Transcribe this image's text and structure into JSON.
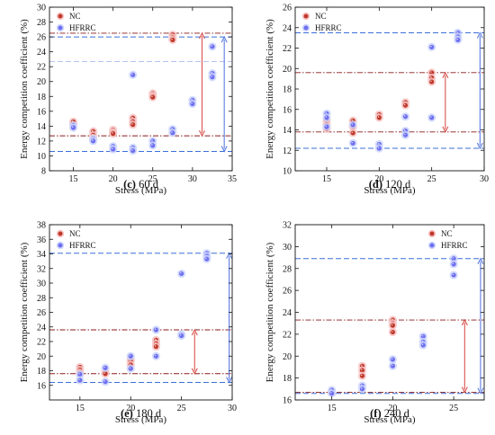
{
  "figure_caption_parts": [
    {
      "letter": "(c)",
      "rest": " 60 d"
    },
    {
      "letter": "(d)",
      "rest": " 120 d"
    },
    {
      "letter": "(e)",
      "rest": " 180 d"
    },
    {
      "letter": "(f)",
      "rest": " 240 d"
    }
  ],
  "colors": {
    "nc": "#c0392b",
    "hfrrc": "#6f6ff0",
    "nc_line": "#8b1a1a",
    "hfrrc_line": "#3b6fd8",
    "nc_arrow": "#d9534f",
    "hfrrc_arrow": "#5b7be0",
    "dot_halo_nc": "#f7c6c6",
    "dot_halo_hf": "#cdd6fb"
  },
  "chart_data": [
    {
      "type": "scatter",
      "panel": "(c) 60 d",
      "xlabel": "Stress (MPa)",
      "ylabel": "Energy competition coefficient (%)",
      "xlim": [
        12,
        35
      ],
      "ylim": [
        8,
        30
      ],
      "xticks": [
        15,
        20,
        25,
        30,
        35
      ],
      "yticks": [
        8,
        10,
        12,
        14,
        16,
        18,
        20,
        22,
        24,
        26,
        28,
        30
      ],
      "legend": [
        "NC",
        "HFRRC"
      ],
      "legend_position": "top-left",
      "series": [
        {
          "name": "NC",
          "points": [
            [
              15,
              14.3
            ],
            [
              15,
              14.6
            ],
            [
              15,
              13.9
            ],
            [
              17.5,
              13.3
            ],
            [
              17.5,
              12.8
            ],
            [
              17.5,
              12.4
            ],
            [
              20,
              13.5
            ],
            [
              20,
              13.2
            ],
            [
              20,
              13.0
            ],
            [
              22.5,
              15.1
            ],
            [
              22.5,
              14.6
            ],
            [
              22.5,
              14.2
            ],
            [
              25,
              18.4
            ],
            [
              25,
              18.1
            ],
            [
              25,
              17.9
            ],
            [
              27.5,
              26.3
            ],
            [
              27.5,
              25.9
            ],
            [
              27.5,
              25.6
            ]
          ]
        },
        {
          "name": "HFRRC",
          "points": [
            [
              15,
              14.1
            ],
            [
              15,
              13.8
            ],
            [
              17.5,
              12.3
            ],
            [
              17.5,
              12.0
            ],
            [
              20,
              11.3
            ],
            [
              20,
              10.9
            ],
            [
              22.5,
              11.1
            ],
            [
              22.5,
              10.7
            ],
            [
              22.5,
              20.9
            ],
            [
              25,
              12.0
            ],
            [
              25,
              11.4
            ],
            [
              27.5,
              13.6
            ],
            [
              27.5,
              13.1
            ],
            [
              30,
              17.5
            ],
            [
              30,
              17.0
            ],
            [
              32.5,
              24.7
            ],
            [
              32.5,
              21.1
            ],
            [
              32.5,
              20.6
            ]
          ]
        }
      ],
      "ref_lines": {
        "nc": [
          26.5,
          12.7
        ],
        "hfrrc": [
          26.0,
          10.6
        ]
      },
      "extra_lines": {
        "hfrrc": [
          22.7
        ]
      },
      "arrows": {
        "nc": {
          "x": 31.2,
          "y_top": 26.5,
          "y_bottom": 12.7
        },
        "hfrrc": {
          "x": 34.0,
          "y_top": 26.0,
          "y_bottom": 10.6
        }
      }
    },
    {
      "type": "scatter",
      "panel": "(d) 120 d",
      "xlabel": "Stress (MPa)",
      "ylabel": "Energy competition coefficient (%)",
      "xlim": [
        12,
        30
      ],
      "ylim": [
        10,
        26
      ],
      "xticks": [
        15,
        20,
        25,
        30
      ],
      "yticks": [
        10,
        12,
        14,
        16,
        18,
        20,
        22,
        24,
        26
      ],
      "legend": [
        "NC",
        "HFRRC"
      ],
      "legend_position": "top-left",
      "series": [
        {
          "name": "NC",
          "points": [
            [
              15,
              14.9
            ],
            [
              15,
              14.5
            ],
            [
              15,
              14.1
            ],
            [
              17.5,
              14.9
            ],
            [
              17.5,
              14.3
            ],
            [
              17.5,
              13.7
            ],
            [
              20,
              15.5
            ],
            [
              20,
              15.2
            ],
            [
              22.5,
              16.7
            ],
            [
              22.5,
              16.4
            ],
            [
              25,
              19.6
            ],
            [
              25,
              19.1
            ],
            [
              25,
              18.7
            ]
          ]
        },
        {
          "name": "HFRRC",
          "points": [
            [
              15,
              15.6
            ],
            [
              15,
              15.2
            ],
            [
              15,
              14.3
            ],
            [
              17.5,
              14.5
            ],
            [
              17.5,
              12.7
            ],
            [
              20,
              12.6
            ],
            [
              20,
              12.2
            ],
            [
              22.5,
              15.3
            ],
            [
              22.5,
              13.9
            ],
            [
              22.5,
              13.5
            ],
            [
              25,
              22.1
            ],
            [
              25,
              15.2
            ],
            [
              27.5,
              23.5
            ],
            [
              27.5,
              23.1
            ],
            [
              27.5,
              22.8
            ]
          ]
        }
      ],
      "ref_lines": {
        "nc": [
          19.6,
          13.8
        ],
        "hfrrc": [
          23.5,
          12.2
        ]
      },
      "arrows": {
        "nc": {
          "x": 26.3,
          "y_top": 19.6,
          "y_bottom": 13.8
        },
        "hfrrc": {
          "x": 29.6,
          "y_top": 23.5,
          "y_bottom": 12.2
        }
      }
    },
    {
      "type": "scatter",
      "panel": "(e) 180 d",
      "xlabel": "Stress (MPa)",
      "ylabel": "Energy competition coefficient (%)",
      "xlim": [
        12,
        30
      ],
      "ylim": [
        14,
        38
      ],
      "xticks": [
        15,
        20,
        25,
        30
      ],
      "yticks": [
        16,
        18,
        20,
        22,
        24,
        26,
        28,
        30,
        32,
        34,
        36,
        38
      ],
      "legend": [
        "NC",
        "HFRRC"
      ],
      "legend_position": "top-left",
      "series": [
        {
          "name": "NC",
          "points": [
            [
              15,
              18.5
            ],
            [
              15,
              18.1
            ],
            [
              15,
              17.7
            ],
            [
              17.5,
              17.9
            ],
            [
              17.5,
              17.6
            ],
            [
              20,
              19.6
            ],
            [
              20,
              19.3
            ],
            [
              20,
              18.8
            ],
            [
              22.5,
              22.2
            ],
            [
              22.5,
              21.7
            ],
            [
              22.5,
              21.3
            ]
          ]
        },
        {
          "name": "HFRRC",
          "points": [
            [
              15,
              17.5
            ],
            [
              15,
              16.7
            ],
            [
              17.5,
              18.4
            ],
            [
              17.5,
              16.5
            ],
            [
              20,
              20.0
            ],
            [
              20,
              18.3
            ],
            [
              22.5,
              23.6
            ],
            [
              22.5,
              20.0
            ],
            [
              25,
              31.3
            ],
            [
              25,
              23.0
            ],
            [
              25,
              22.8
            ],
            [
              27.5,
              34.1
            ],
            [
              27.5,
              33.7
            ],
            [
              27.5,
              33.3
            ]
          ]
        }
      ],
      "ref_lines": {
        "nc": [
          23.6,
          17.6
        ],
        "hfrrc": [
          34.1,
          16.4
        ]
      },
      "arrows": {
        "nc": {
          "x": 26.3,
          "y_top": 23.6,
          "y_bottom": 17.6
        },
        "hfrrc": {
          "x": 29.7,
          "y_top": 34.1,
          "y_bottom": 16.4
        }
      }
    },
    {
      "type": "scatter",
      "panel": "(f) 240 d",
      "xlabel": "Stress (MPa)",
      "ylabel": "Energy competition coefficient (%)",
      "xlim": [
        12,
        27.5
      ],
      "ylim": [
        16,
        32
      ],
      "xticks": [
        15,
        20,
        25
      ],
      "yticks": [
        16,
        18,
        20,
        22,
        24,
        26,
        28,
        30,
        32
      ],
      "legend": [
        "NC",
        "HFRRC"
      ],
      "legend_position": "top-right",
      "series": [
        {
          "name": "NC",
          "points": [
            [
              15,
              16.7
            ],
            [
              17.5,
              19.1
            ],
            [
              17.5,
              18.7
            ],
            [
              17.5,
              18.2
            ],
            [
              20,
              23.3
            ],
            [
              20,
              23.0
            ],
            [
              20,
              22.8
            ],
            [
              20,
              22.2
            ]
          ]
        },
        {
          "name": "HFRRC",
          "points": [
            [
              15,
              16.9
            ],
            [
              15,
              16.6
            ],
            [
              17.5,
              17.3
            ],
            [
              17.5,
              17.0
            ],
            [
              20,
              19.7
            ],
            [
              20,
              19.1
            ],
            [
              22.5,
              21.8
            ],
            [
              22.5,
              21.3
            ],
            [
              22.5,
              21.0
            ],
            [
              25,
              28.9
            ],
            [
              25,
              28.4
            ],
            [
              25,
              27.4
            ]
          ]
        }
      ],
      "ref_lines": {
        "nc": [
          23.3,
          16.7
        ],
        "hfrrc": [
          28.9,
          16.6
        ]
      },
      "arrows": {
        "nc": {
          "x": 25.9,
          "y_top": 23.3,
          "y_bottom": 16.7
        },
        "hfrrc": {
          "x": 27.2,
          "y_top": 28.9,
          "y_bottom": 16.6
        }
      }
    }
  ]
}
